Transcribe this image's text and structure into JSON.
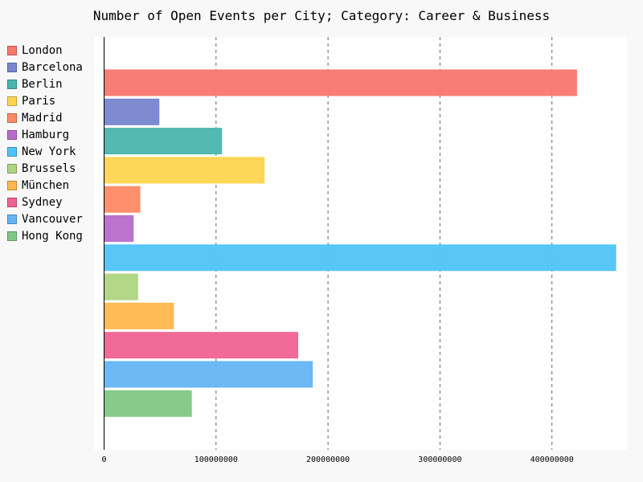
{
  "chart_data": {
    "type": "bar",
    "orientation": "horizontal",
    "title": "Number of Open Events per City; Category: Career & Business",
    "xlabel": "",
    "ylabel": "",
    "xlim": [
      0,
      460000000
    ],
    "x_ticks": [
      0,
      100000000,
      200000000,
      300000000,
      400000000
    ],
    "x_tick_labels": [
      "0",
      "100000000",
      "200000000",
      "300000000",
      "400000000"
    ],
    "grid": "vertical dashed",
    "legend_position": "left",
    "series": [
      {
        "name": "London",
        "value": 422000000,
        "color": "#f8776e"
      },
      {
        "name": "Barcelona",
        "value": 49000000,
        "color": "#7785cf"
      },
      {
        "name": "Berlin",
        "value": 105000000,
        "color": "#4ab5ad"
      },
      {
        "name": "Paris",
        "value": 143000000,
        "color": "#ffd54f"
      },
      {
        "name": "Madrid",
        "value": 32000000,
        "color": "#ff8a65"
      },
      {
        "name": "Hamburg",
        "value": 26000000,
        "color": "#b86bcb"
      },
      {
        "name": "New York",
        "value": 457000000,
        "color": "#4fc3f7"
      },
      {
        "name": "Brussels",
        "value": 30000000,
        "color": "#aed581"
      },
      {
        "name": "München",
        "value": 62000000,
        "color": "#ffb74d"
      },
      {
        "name": "Sydney",
        "value": 173000000,
        "color": "#f06292"
      },
      {
        "name": "Vancouver",
        "value": 186000000,
        "color": "#64b5f6"
      },
      {
        "name": "Hong Kong",
        "value": 78000000,
        "color": "#81c784"
      }
    ]
  }
}
